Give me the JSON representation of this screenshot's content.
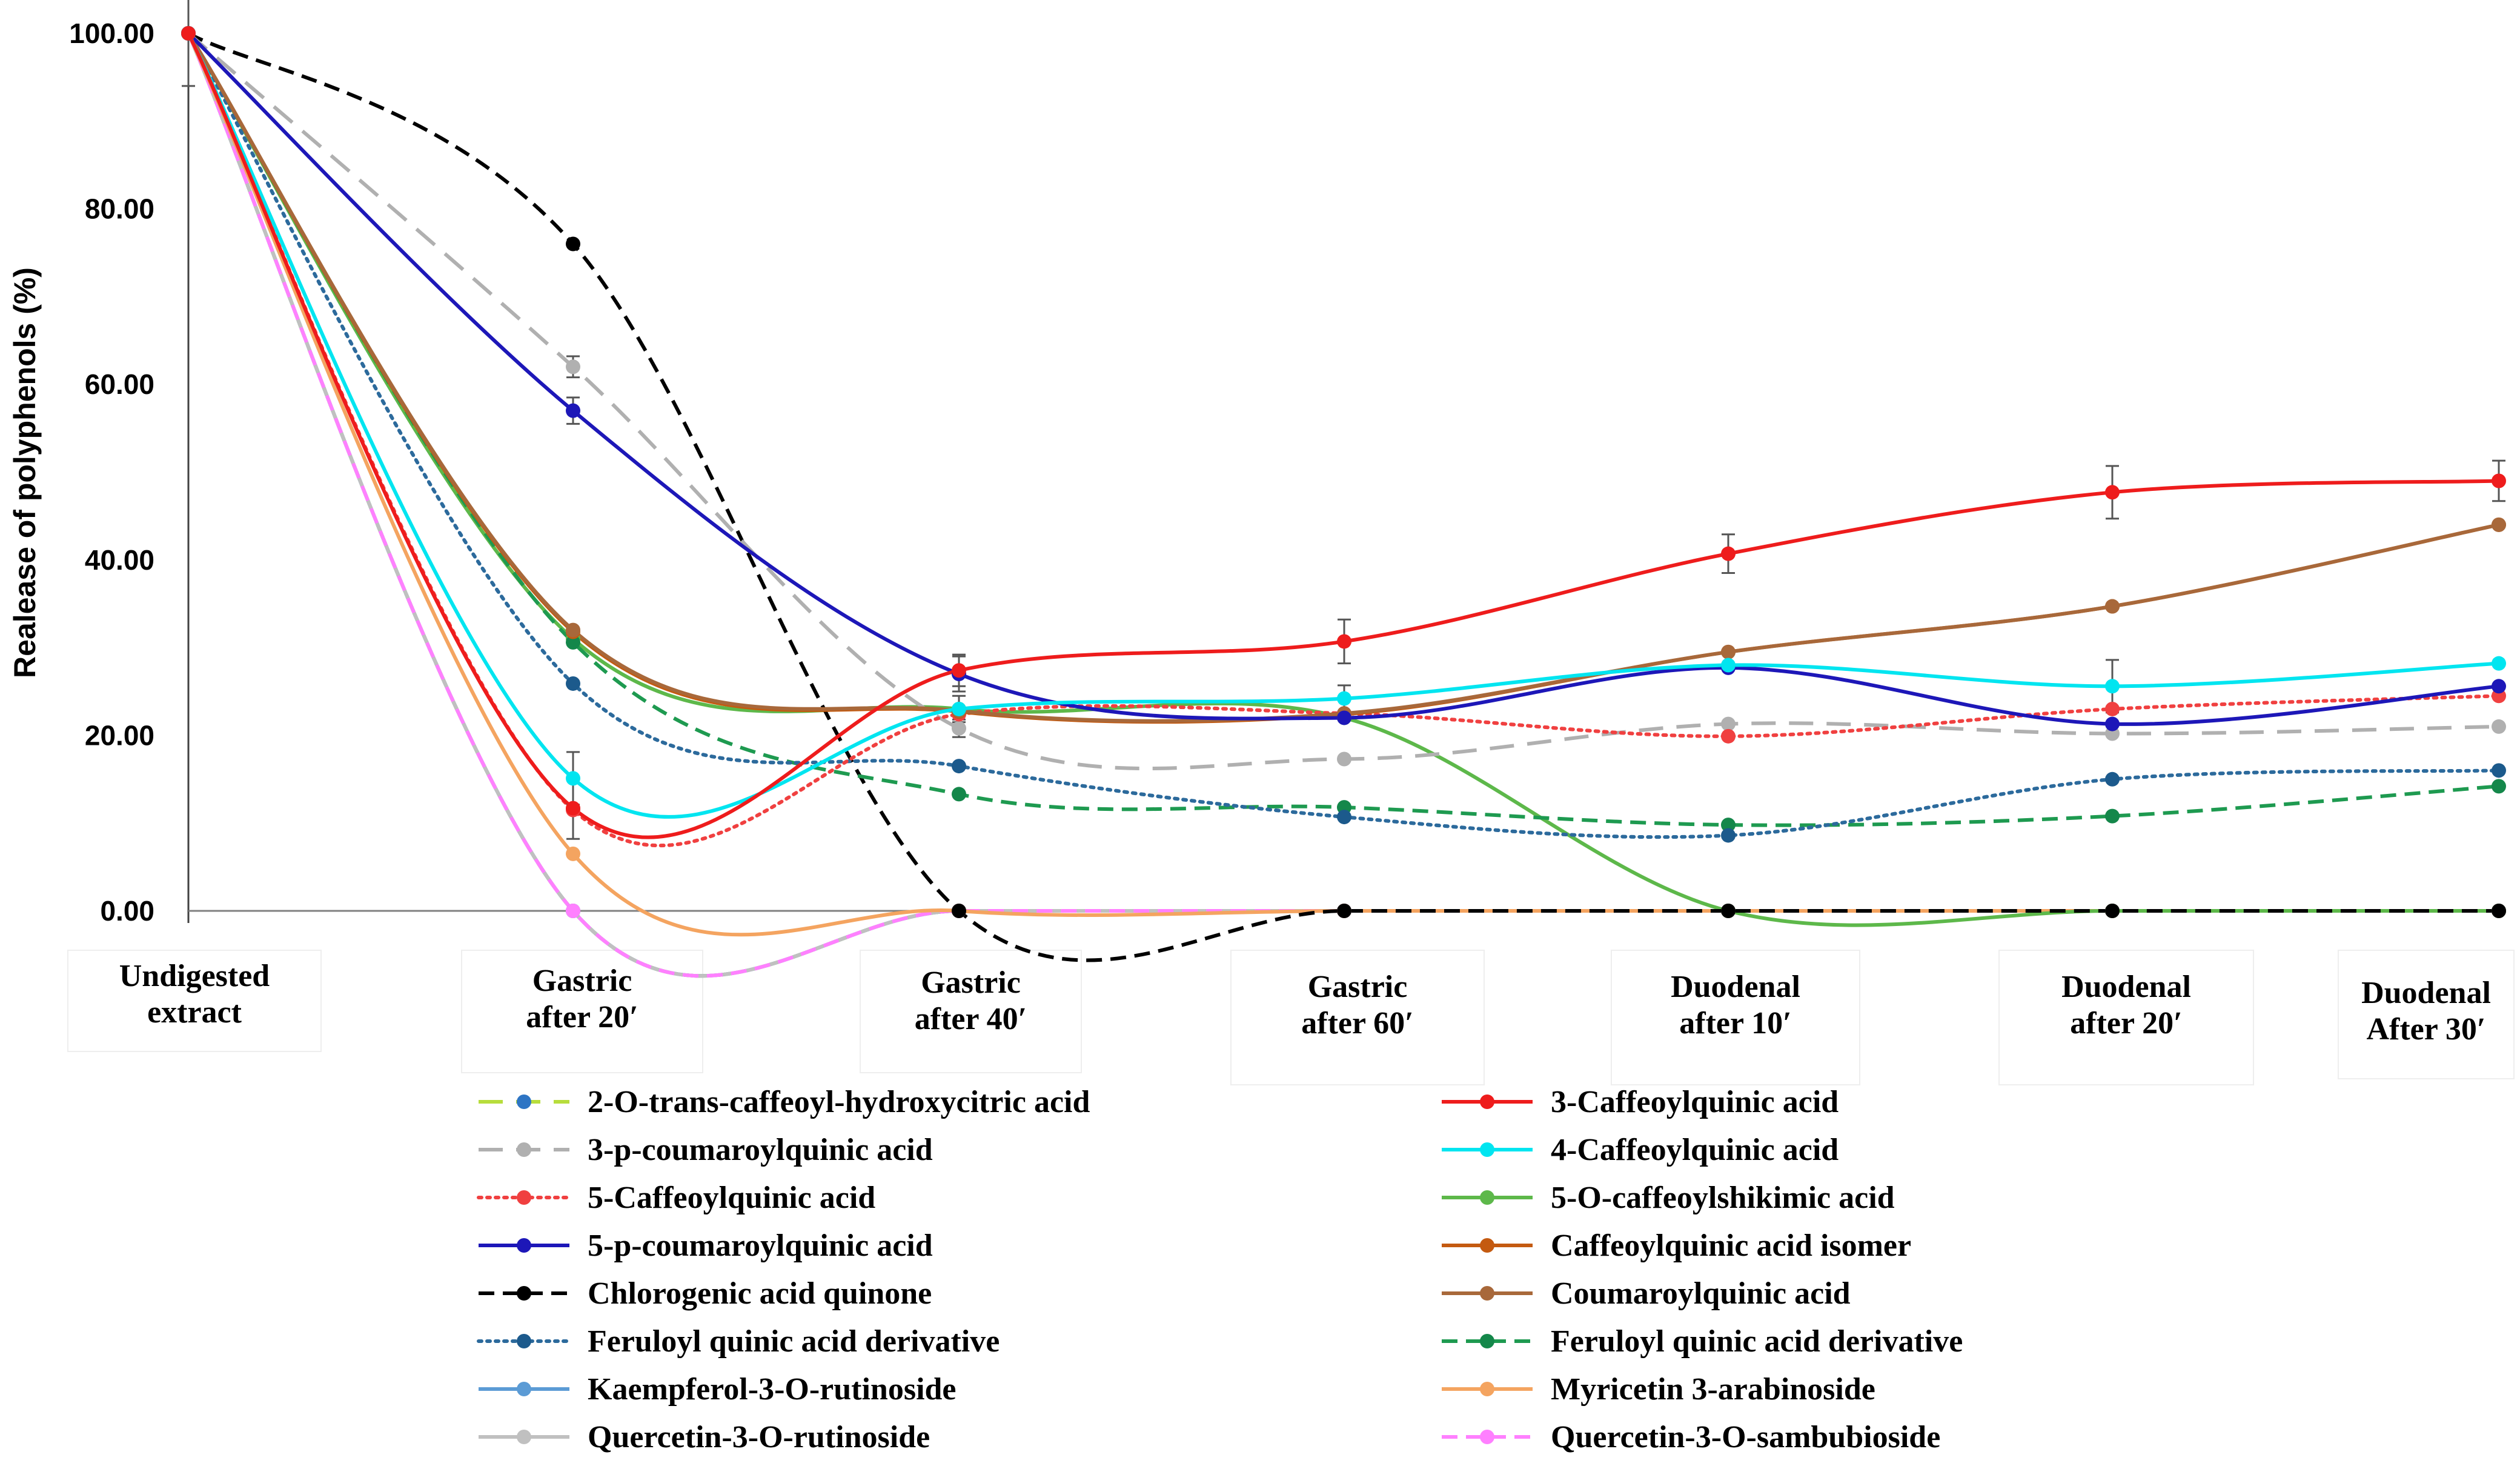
{
  "chart_data": {
    "type": "line",
    "title": "",
    "xlabel": "",
    "ylabel": "Realease of polyphenols (%)",
    "ylim": [
      0,
      100
    ],
    "yticks": [
      "0.00",
      "20.00",
      "40.00",
      "60.00",
      "80.00",
      "100.00"
    ],
    "categories": [
      {
        "line1": "Undigested",
        "line2": "extract"
      },
      {
        "line1": "Gastric",
        "line2": "after 20′"
      },
      {
        "line1": "Gastric",
        "line2": "after 40′"
      },
      {
        "line1": "Gastric",
        "line2": "after 60′"
      },
      {
        "line1": "Duodenal",
        "line2": "after 10′"
      },
      {
        "line1": "Duodenal",
        "line2": "after 20′"
      },
      {
        "line1": "Duodenal",
        "line2": "After 30′"
      }
    ],
    "series": [
      {
        "name": "2-O-trans-caffeoyl-hydroxycitric acid",
        "line_color": "#b7dd3c",
        "marker_color": "#2e75c4",
        "dash": "long",
        "values": [
          100,
          0,
          0,
          0,
          0,
          0,
          0
        ]
      },
      {
        "name": "3-Caffeoylquinic acid",
        "line_color": "#ee1c1c",
        "marker_color": "#ee1c1c",
        "dash": "solid",
        "values": [
          100,
          11.7,
          27.4,
          30.7,
          40.7,
          47.7,
          49.0
        ],
        "errors": [
          0,
          3.5,
          1.8,
          2.5,
          2.2,
          3.0,
          2.3
        ]
      },
      {
        "name": "3-p-coumaroylquinic acid",
        "line_color": "#b0b0b0",
        "marker_color": "#b0b0b0",
        "dash": "long",
        "values": [
          100,
          62.0,
          20.8,
          17.3,
          21.3,
          20.2,
          21.0
        ],
        "errors": [
          0,
          1.2,
          1.0,
          0,
          0,
          0,
          0
        ]
      },
      {
        "name": "4-Caffeoylquinic acid",
        "line_color": "#00e5f0",
        "marker_color": "#00e5f0",
        "dash": "solid",
        "values": [
          100,
          15.1,
          23.0,
          24.2,
          28.0,
          25.6,
          28.2
        ],
        "errors": [
          0,
          3.0,
          1.5,
          1.5,
          0,
          3.0,
          0
        ]
      },
      {
        "name": "5-Caffeoylquinic acid",
        "line_color": "#f04040",
        "marker_color": "#f04040",
        "dash": "dot",
        "values": [
          100,
          11.5,
          22.4,
          22.5,
          19.9,
          23.0,
          24.5
        ]
      },
      {
        "name": "5-O-caffeoylshikimic acid",
        "line_color": "#5db84a",
        "marker_color": "#5db84a",
        "dash": "solid",
        "values": [
          100,
          31.0,
          23.0,
          22.0,
          0,
          0,
          0
        ]
      },
      {
        "name": "5-p-coumaroylquinic acid",
        "line_color": "#1d17b8",
        "marker_color": "#1d17b8",
        "dash": "solid",
        "values": [
          100,
          57.0,
          27.0,
          22.0,
          27.7,
          21.3,
          25.6
        ],
        "errors": [
          0,
          1.5,
          2.0,
          0,
          0,
          0,
          0
        ]
      },
      {
        "name": "Caffeoylquinic acid isomer",
        "line_color": "#c45a10",
        "marker_color": "#c45a10",
        "dash": "solid",
        "values": [
          100,
          31.8,
          22.7,
          22.4,
          29.5,
          34.7,
          44.0
        ]
      },
      {
        "name": "Chlorogenic acid quinone",
        "line_color": "#000000",
        "marker_color": "#000000",
        "dash": "dash",
        "values": [
          100,
          76.0,
          0,
          0,
          0,
          0,
          0
        ],
        "errors": [
          6.0,
          0,
          0,
          0,
          0,
          0,
          0
        ]
      },
      {
        "name": "Coumaroylquinic acid",
        "line_color": "#a8683a",
        "marker_color": "#a8683a",
        "dash": "solid",
        "values": [
          100,
          32.0,
          22.8,
          22.5,
          29.5,
          34.7,
          44.0
        ]
      },
      {
        "name": "Feruloyl quinic acid derivative",
        "line_color": "#2c6a9c",
        "marker_color": "#1c5a8c",
        "dash": "dot",
        "values": [
          100,
          25.9,
          16.5,
          10.7,
          8.6,
          15.0,
          16.0
        ]
      },
      {
        "name": "Feruloyl quinic acid derivative",
        "line_color": "#1e9a50",
        "marker_color": "#14874a",
        "dash": "dash",
        "values": [
          100,
          30.6,
          13.3,
          11.8,
          9.8,
          10.8,
          14.2
        ]
      },
      {
        "name": "Kaempferol-3-O-rutinoside",
        "line_color": "#5b9bd5",
        "marker_color": "#5b9bd5",
        "dash": "solid",
        "values": [
          100,
          0,
          0,
          0,
          0,
          0,
          0
        ]
      },
      {
        "name": "Myricetin 3-arabinoside",
        "line_color": "#f4a460",
        "marker_color": "#f4a460",
        "dash": "solid",
        "values": [
          100,
          6.5,
          0,
          0,
          0,
          0,
          0
        ]
      },
      {
        "name": "Quercetin-3-O-rutinoside",
        "line_color": "#c0c0c0",
        "marker_color": "#c0c0c0",
        "dash": "solid",
        "values": [
          100,
          0,
          0,
          0,
          0,
          0,
          0
        ]
      },
      {
        "name": "Quercetin-3-O-sambubioside",
        "line_color": "#ff80ff",
        "marker_color": "#ff80ff",
        "dash": "dash",
        "values": [
          100,
          0,
          0,
          0,
          0,
          0,
          0
        ]
      }
    ]
  }
}
